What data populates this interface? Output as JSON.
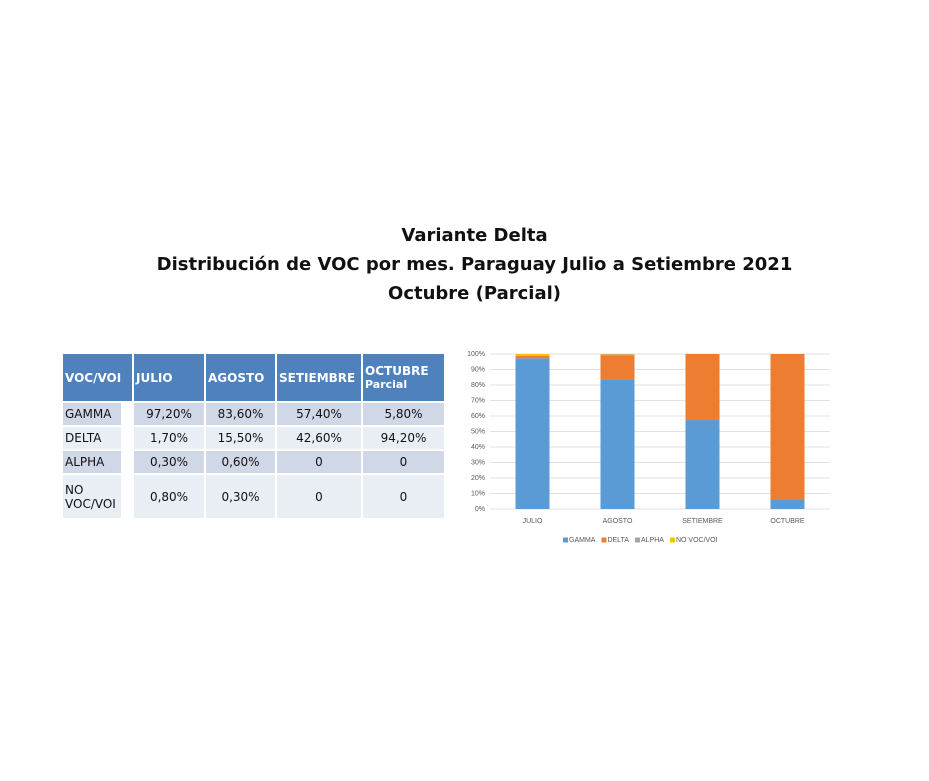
{
  "title_lines": [
    "Variante Delta",
    "Distribución de VOC por mes. Paraguay Julio a Setiembre 2021",
    "Octubre (Parcial)"
  ],
  "table": {
    "header": [
      [
        "VOC/VOI"
      ],
      [
        "JULIO"
      ],
      [
        "AGOSTO"
      ],
      [
        "SETIEMBRE"
      ],
      [
        "OCTUBRE",
        "Parcial"
      ]
    ],
    "rows": [
      [
        "GAMMA",
        "97,20%",
        "83,60%",
        "57,40%",
        "5,80%"
      ],
      [
        "DELTA",
        "1,70%",
        "15,50%",
        "42,60%",
        "94,20%"
      ],
      [
        "ALPHA",
        "0,30%",
        "0,60%",
        "0",
        "0"
      ],
      [
        "NO VOC/VOI",
        "0,80%",
        "0,30%",
        "0",
        "0"
      ]
    ]
  },
  "chart_data": {
    "type": "stacked_bar",
    "categories": [
      "JULIO",
      "AGOSTO",
      "SETIEMBRE",
      "OCTUBRE"
    ],
    "series": [
      {
        "name": "GAMMA",
        "color": "#5b9bd5",
        "values": [
          97.2,
          83.6,
          57.4,
          5.8
        ]
      },
      {
        "name": "DELTA",
        "color": "#ed7d31",
        "values": [
          1.7,
          15.5,
          42.6,
          94.2
        ]
      },
      {
        "name": "ALPHA",
        "color": "#a5a5a5",
        "values": [
          0.3,
          0.6,
          0,
          0
        ]
      },
      {
        "name": "NO VOC/VOI",
        "color": "#ffc000",
        "values": [
          0.8,
          0.3,
          0,
          0
        ]
      }
    ],
    "ylim": [
      0,
      100
    ],
    "yticks": [
      {
        "value": 0,
        "label": "0%"
      },
      {
        "value": 10,
        "label": "10%"
      },
      {
        "value": 20,
        "label": "20%"
      },
      {
        "value": 30,
        "label": "30%"
      },
      {
        "value": 40,
        "label": "40%"
      },
      {
        "value": 50,
        "label": "50%"
      },
      {
        "value": 60,
        "label": "60%"
      },
      {
        "value": 70,
        "label": "70%"
      },
      {
        "value": 80,
        "label": "80%"
      },
      {
        "value": 90,
        "label": "90%"
      },
      {
        "value": 100,
        "label": "100%"
      }
    ],
    "grid": true,
    "legend": "bottom"
  }
}
